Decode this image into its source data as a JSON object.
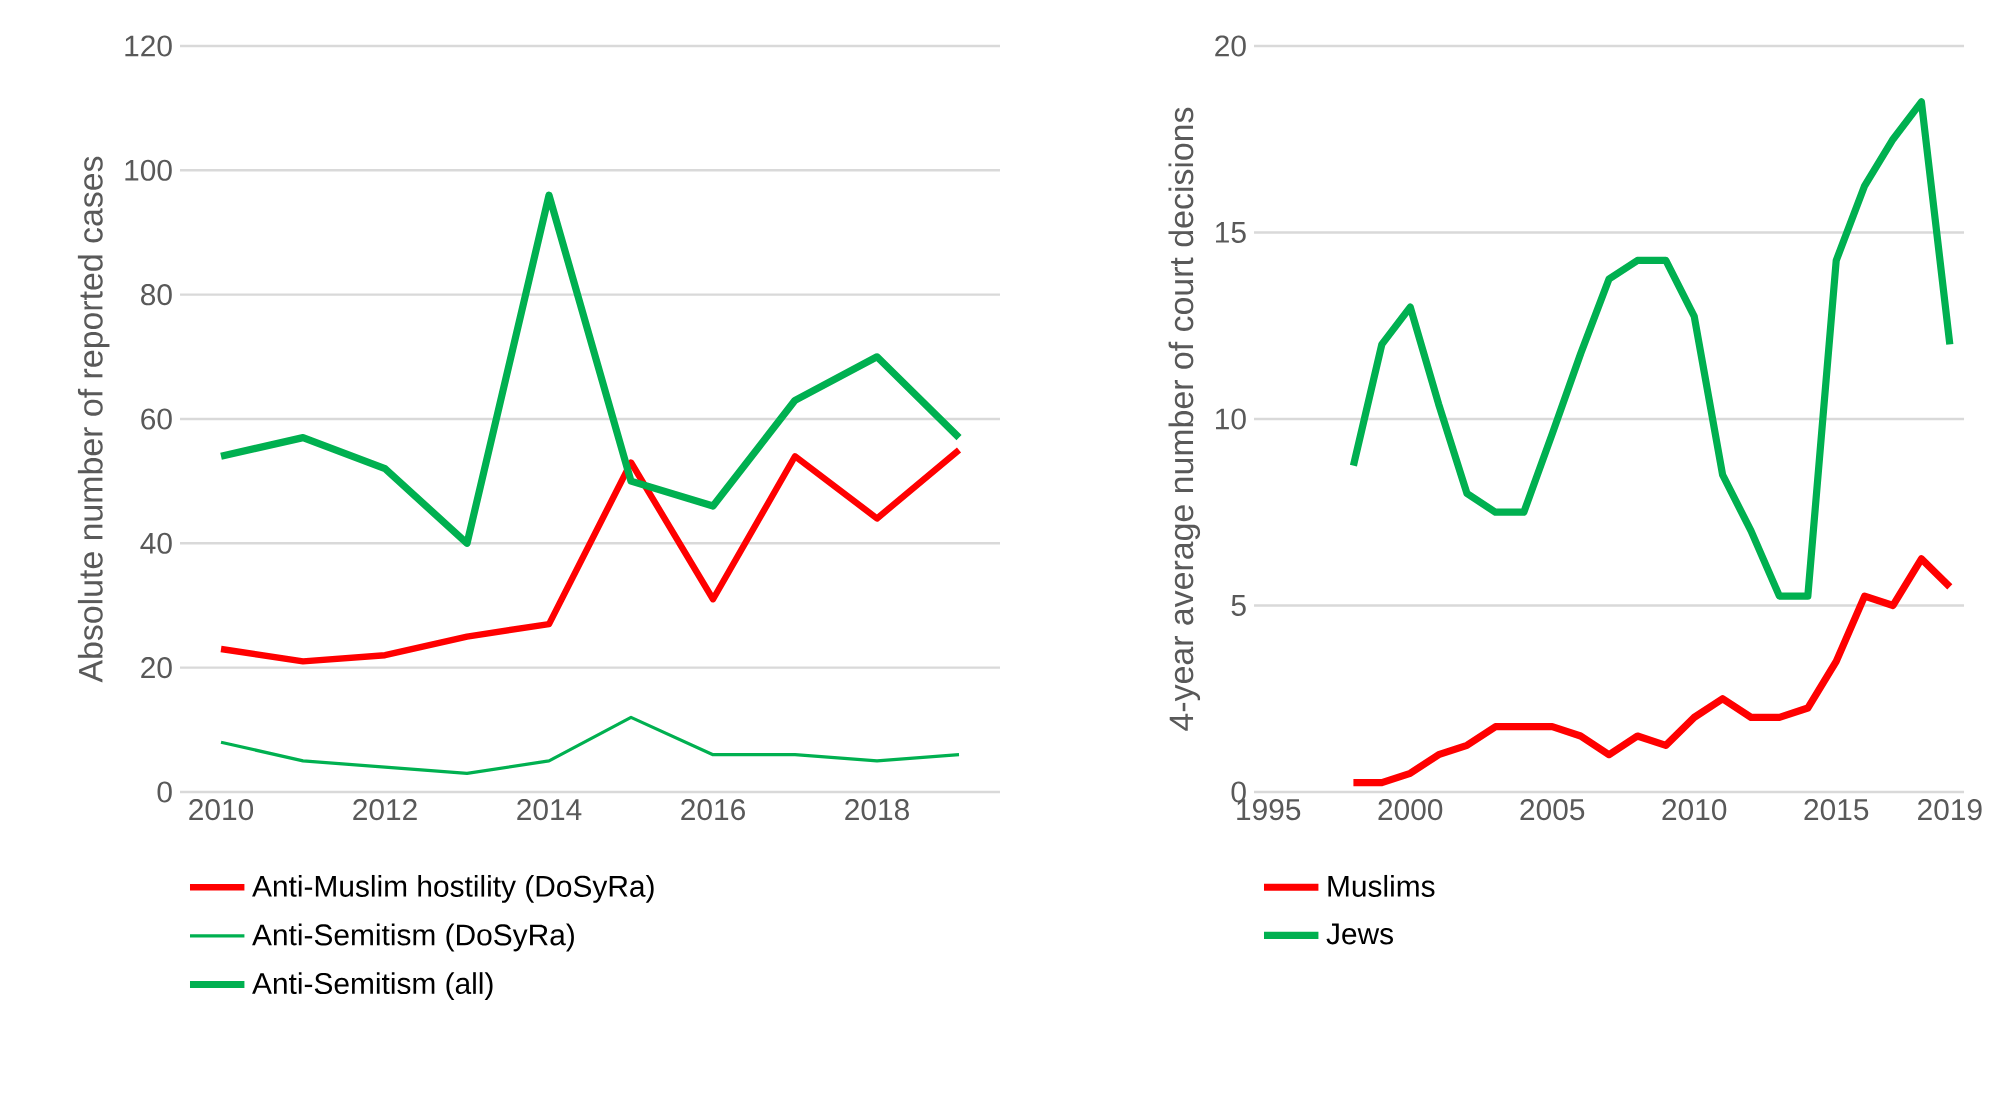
{
  "chart_data": [
    {
      "type": "line",
      "ylabel": "Absolute number of reported cases",
      "x": [
        2010,
        2011,
        2012,
        2013,
        2014,
        2015,
        2016,
        2017,
        2018,
        2019
      ],
      "xlim": [
        2009.5,
        2019.5
      ],
      "xticks": [
        2010,
        2012,
        2014,
        2016,
        2018
      ],
      "ylim": [
        0,
        120
      ],
      "yticks": [
        0,
        20,
        40,
        60,
        80,
        100,
        120
      ],
      "grid": "y",
      "legend": "bottom",
      "marker": "none",
      "series": [
        {
          "name": "Anti-Muslim hostility (DoSyRa)",
          "color": "#ff0000",
          "values": [
            23,
            21,
            22,
            25,
            27,
            53,
            31,
            54,
            44,
            55
          ]
        },
        {
          "name": "Anti-Semitism (DoSyRa)",
          "color": "#00b050",
          "values": [
            8,
            5,
            4,
            3,
            5,
            12,
            6,
            6,
            5,
            6
          ]
        },
        {
          "name": "Anti-Semitism (all)",
          "color": "#00b050",
          "values": [
            54,
            57,
            52,
            40,
            96,
            50,
            46,
            63,
            70,
            57
          ]
        }
      ]
    },
    {
      "type": "line",
      "ylabel": "4-year average number of court decisions",
      "x": [
        1998,
        1999,
        2000,
        2001,
        2002,
        2003,
        2004,
        2005,
        2006,
        2007,
        2008,
        2009,
        2010,
        2011,
        2012,
        2013,
        2014,
        2015,
        2016,
        2017,
        2018,
        2019
      ],
      "xlim": [
        1994.5,
        2019.5
      ],
      "xticks": [
        1995,
        2000,
        2005,
        2010,
        2015,
        2019
      ],
      "ylim": [
        0,
        20
      ],
      "yticks": [
        0,
        5,
        10,
        15,
        20
      ],
      "grid": "y",
      "legend": "bottom",
      "marker": "none",
      "series": [
        {
          "name": "Muslims",
          "color": "#ff0000",
          "values": [
            0.25,
            0.25,
            0.5,
            1,
            1.25,
            1.75,
            1.75,
            1.75,
            1.5,
            1,
            1.5,
            1.25,
            2,
            2.5,
            2,
            2,
            2.25,
            3.5,
            5.25,
            5,
            6.25,
            5.5
          ]
        },
        {
          "name": "Jews",
          "color": "#00b050",
          "values": [
            8.75,
            12,
            13,
            10.4,
            8,
            7.5,
            7.5,
            9.6,
            11.75,
            13.75,
            14.25,
            14.25,
            12.75,
            8.5,
            7,
            5.25,
            5.25,
            14.25,
            16.25,
            17.5,
            18.5,
            12
          ]
        }
      ]
    }
  ]
}
